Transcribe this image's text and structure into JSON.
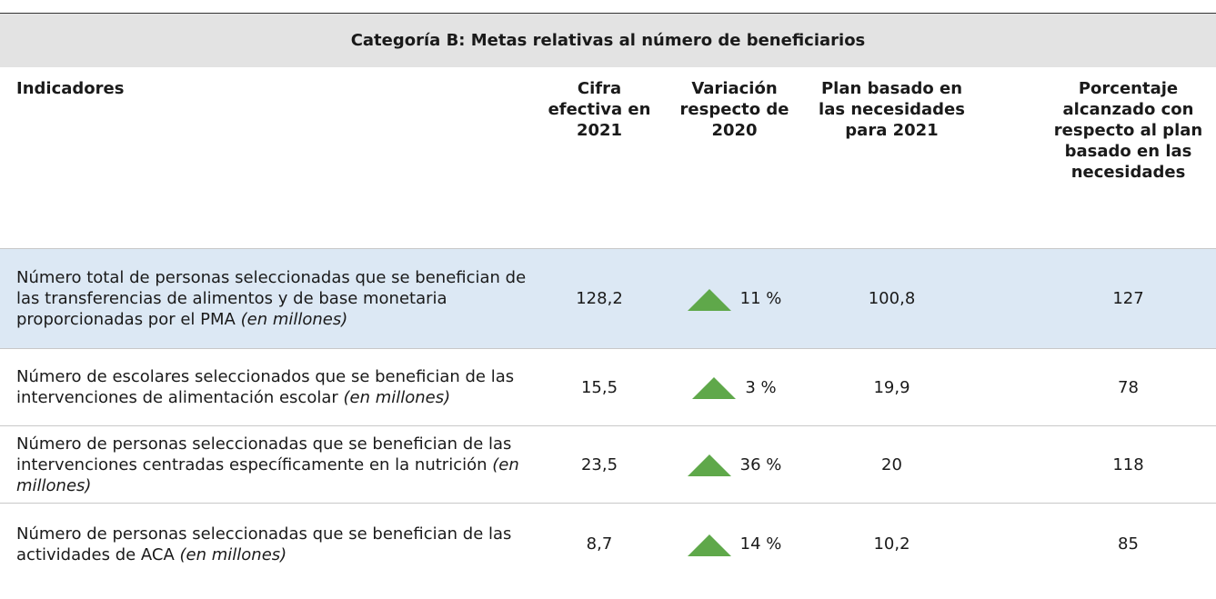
{
  "table": {
    "title": "Categoría B: Metas relativas al número de beneficiarios",
    "columns": [
      "Indicadores",
      "Cifra efectiva en 2021",
      "Variación respecto de 2020",
      "Plan basado en las necesidades para 2021",
      "Porcentaje alcanzado con respecto al plan basado en las necesidades"
    ],
    "rows": [
      {
        "indicator": "Número total de personas seleccionadas que se benefician de las transferencias de alimentos y de base monetaria proporcionadas por el PMA",
        "unit": "(en millones)",
        "actual": "128,2",
        "change": "11 %",
        "plan": "100,8",
        "percent": "127"
      },
      {
        "indicator": "Número de escolares seleccionados que se benefician de las intervenciones de alimentación escolar",
        "unit": "(en millones)",
        "actual": "15,5",
        "change": "3 %",
        "plan": "19,9",
        "percent": "78"
      },
      {
        "indicator": "Número de personas seleccionadas que se benefician de las intervenciones centradas específicamente en la nutrición",
        "unit": "(en millones)",
        "actual": "23,5",
        "change": "36 %",
        "plan": "20",
        "percent": "118"
      },
      {
        "indicator": "Número de personas seleccionadas que se benefician de las actividades de ACA",
        "unit": "(en millones)",
        "actual": "8,7",
        "change": "14 %",
        "plan": "10,2",
        "percent": "85"
      }
    ]
  }
}
